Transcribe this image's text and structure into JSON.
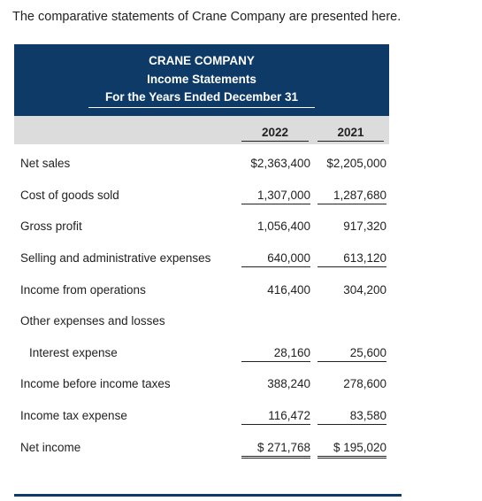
{
  "intro": "The comparative statements of Crane Company are presented here.",
  "header": {
    "company": "CRANE COMPANY",
    "statement": "Income Statements",
    "period": "For the Years Ended December 31"
  },
  "columns": [
    "2022",
    "2021"
  ],
  "rows": [
    {
      "label": "Net sales",
      "v2022": "$2,363,400",
      "v2021": "$2,205,000"
    },
    {
      "label": "Cost of goods sold",
      "v2022": "1,307,000",
      "v2021": "1,287,680"
    },
    {
      "label": "Gross profit",
      "v2022": "1,056,400",
      "v2021": "917,320"
    },
    {
      "label": "Selling and administrative expenses",
      "v2022": "640,000",
      "v2021": "613,120"
    },
    {
      "label": "Income from operations",
      "v2022": "416,400",
      "v2021": "304,200"
    },
    {
      "label": "Other expenses and losses",
      "v2022": "",
      "v2021": ""
    },
    {
      "label": "Interest expense",
      "v2022": "28,160",
      "v2021": "25,600"
    },
    {
      "label": "Income before income taxes",
      "v2022": "388,240",
      "v2021": "278,600"
    },
    {
      "label": "Income tax expense",
      "v2022": "116,472",
      "v2021": "83,580"
    },
    {
      "label": "Net income",
      "v2022": "$ 271,768",
      "v2021": "$ 195,020"
    }
  ],
  "colors": {
    "header_bg": "#0e3a68",
    "column_band": "#dcdcdc"
  }
}
